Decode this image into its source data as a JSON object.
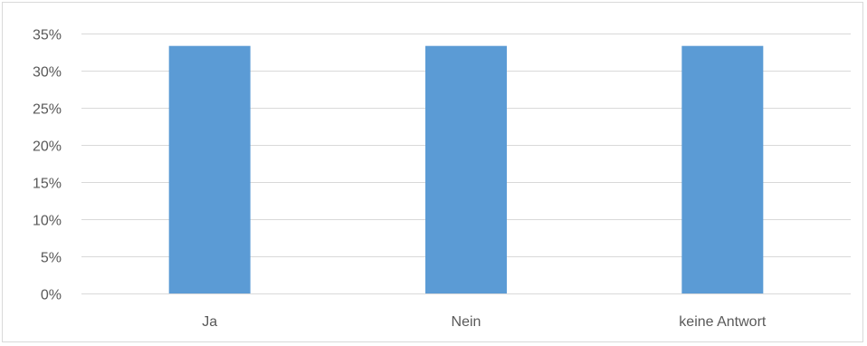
{
  "chart_data": {
    "type": "bar",
    "title": "",
    "xlabel": "",
    "ylabel": "",
    "categories": [
      "Ja",
      "Nein",
      "keine Antwort"
    ],
    "values": [
      0.3333,
      0.3333,
      0.3333
    ],
    "ylim": [
      0,
      0.35
    ],
    "yticks": [
      0,
      0.05,
      0.1,
      0.15,
      0.2,
      0.25,
      0.3,
      0.35
    ],
    "ytick_labels": [
      "0%",
      "5%",
      "10%",
      "15%",
      "20%",
      "25%",
      "30%",
      "35%"
    ],
    "grid": true,
    "legend": "none",
    "colors": {
      "bar": "#5b9bd5",
      "grid": "#d9d9d9",
      "axis": "#d9d9d9",
      "text": "#595959"
    }
  }
}
